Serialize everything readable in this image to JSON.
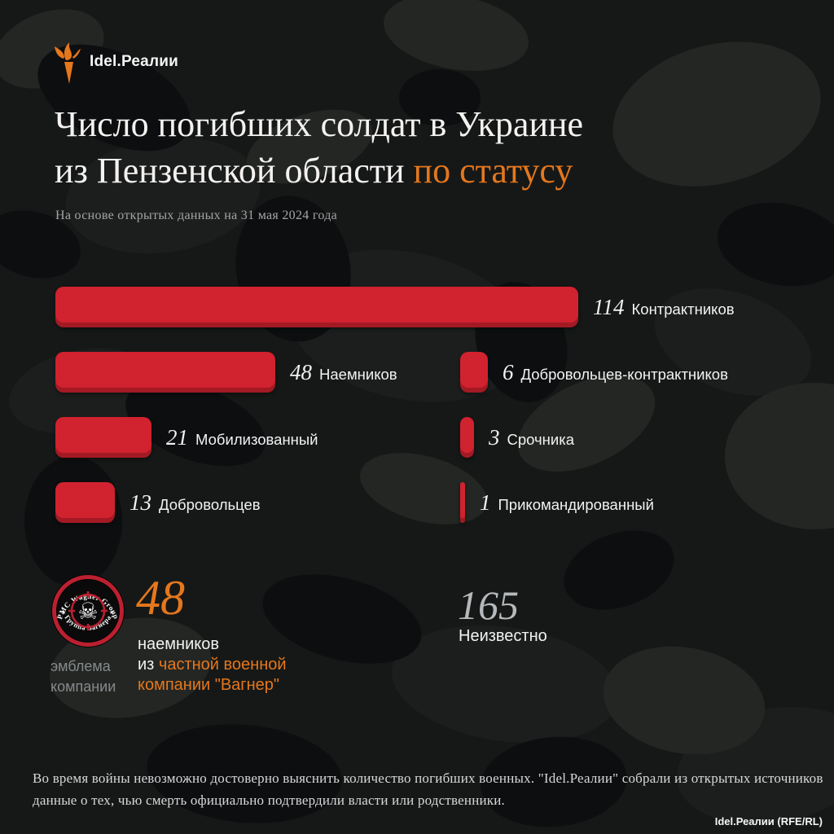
{
  "brand": {
    "logo_text": "Idel.Реалии"
  },
  "header": {
    "title_line1": "Число погибших солдат в Украине",
    "title_line2_prefix": "из Пензенской области ",
    "title_line2_highlight": "по статусу",
    "subtitle": "На основе открытых данных на 31 мая 2024 года"
  },
  "chart_data": {
    "type": "bar",
    "orientation": "horizontal",
    "title": "Число погибших солдат в Украине из Пензенской области по статусу",
    "categories": [
      "Контрактников",
      "Наемников",
      "Добровольцев-контрактников",
      "Мобилизованный",
      "Срочника",
      "Добровольцев",
      "Прикомандированный"
    ],
    "values": [
      114,
      48,
      6,
      21,
      3,
      13,
      1
    ],
    "bar_color": "#d1222f",
    "grid": false,
    "legend": false,
    "rows": [
      {
        "value": 114,
        "label": "Контрактников",
        "col": "left",
        "row": 0
      },
      {
        "value": 48,
        "label": "Наемников",
        "col": "left",
        "row": 1
      },
      {
        "value": 6,
        "label": "Добровольцев-контрактников",
        "col": "right",
        "row": 1
      },
      {
        "value": 21,
        "label": "Мобилизованный",
        "col": "left",
        "row": 2
      },
      {
        "value": 3,
        "label": "Срочника",
        "col": "right",
        "row": 2
      },
      {
        "value": 13,
        "label": "Добровольцев",
        "col": "left",
        "row": 3
      },
      {
        "value": 1,
        "label": "Прикомандированный",
        "col": "right",
        "row": 3
      }
    ]
  },
  "wagner": {
    "badge_top_text": "PMC Wagner Group",
    "badge_bottom_text": "Группа Вагнера",
    "badge_star": "★",
    "skull_glyph": "☠",
    "caption_line1": "эмблема",
    "caption_line2": "компании",
    "count": "48",
    "line1": "наемников",
    "line2_white": "из ",
    "line2_orange": "частной военной",
    "line3_orange": "компании \"Вагнер\""
  },
  "unknown": {
    "count": "165",
    "label": "Неизвестно"
  },
  "footer": {
    "disclaimer_line1": "Во время войны невозможно достоверно выяснить количество погибших военных. \"Idel.Реалии\" собрали из открытых источников",
    "disclaimer_line2": "данные о тех, чью смерть официально подтвердили власти или родственники.",
    "credit": "Idel.Реалии (RFE/RL)"
  },
  "colors": {
    "accent_orange": "#e5771c",
    "bar_red": "#d1222f",
    "badge_ring_red": "#bb2030",
    "number_gray": "#b5b9bb",
    "muted_gray": "#86898b"
  }
}
